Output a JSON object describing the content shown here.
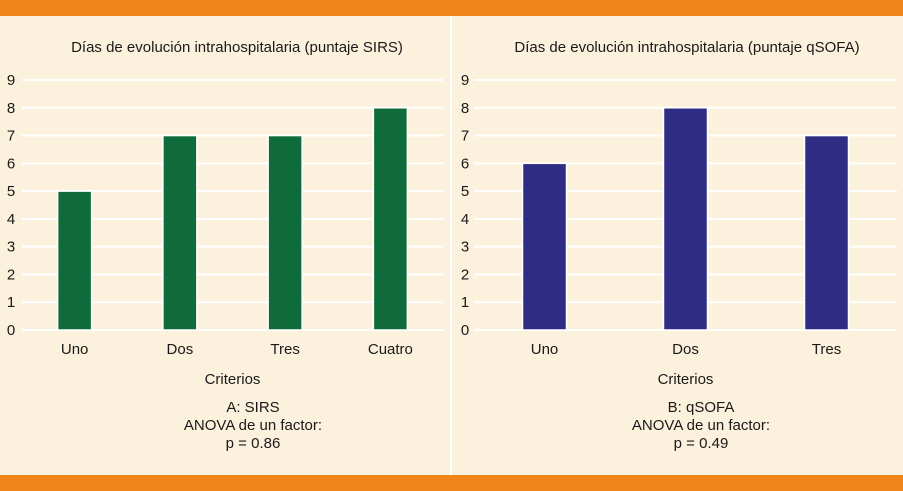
{
  "colors": {
    "background": "#fbf1dc",
    "band": "#ef8418",
    "sirs_bar": "#0f6b3a",
    "qsofa_bar": "#2f2c84",
    "grid": "#ffffff"
  },
  "chart_data": [
    {
      "type": "bar",
      "title": "Días de evolución intrahospitalaria (puntaje SIRS)",
      "xlabel": "Criterios",
      "ylabel": "",
      "categories": [
        "Uno",
        "Dos",
        "Tres",
        "Cuatro"
      ],
      "values": [
        5,
        7,
        7,
        8
      ],
      "ylim": [
        0,
        9
      ],
      "yticks": [
        "0",
        "1",
        "2",
        "3",
        "4",
        "5",
        "6",
        "7",
        "8",
        "9"
      ],
      "grid": true,
      "color": "#0f6b3a"
    },
    {
      "type": "bar",
      "title": "Días de evolución intrahospitalaria (puntaje qSOFA)",
      "xlabel": "Criterios",
      "ylabel": "",
      "categories": [
        "Uno",
        "Dos",
        "Tres"
      ],
      "values": [
        6,
        8,
        7
      ],
      "ylim": [
        0,
        9
      ],
      "yticks": [
        "0",
        "1",
        "2",
        "3",
        "4",
        "5",
        "6",
        "7",
        "8",
        "9"
      ],
      "grid": true,
      "color": "#2f2c84"
    }
  ],
  "captions": [
    {
      "line1": "A: SIRS",
      "line2": "ANOVA de un factor:",
      "line3": "p = 0.86"
    },
    {
      "line1": "B: qSOFA",
      "line2": "ANOVA de un factor:",
      "line3": "p = 0.49"
    }
  ]
}
